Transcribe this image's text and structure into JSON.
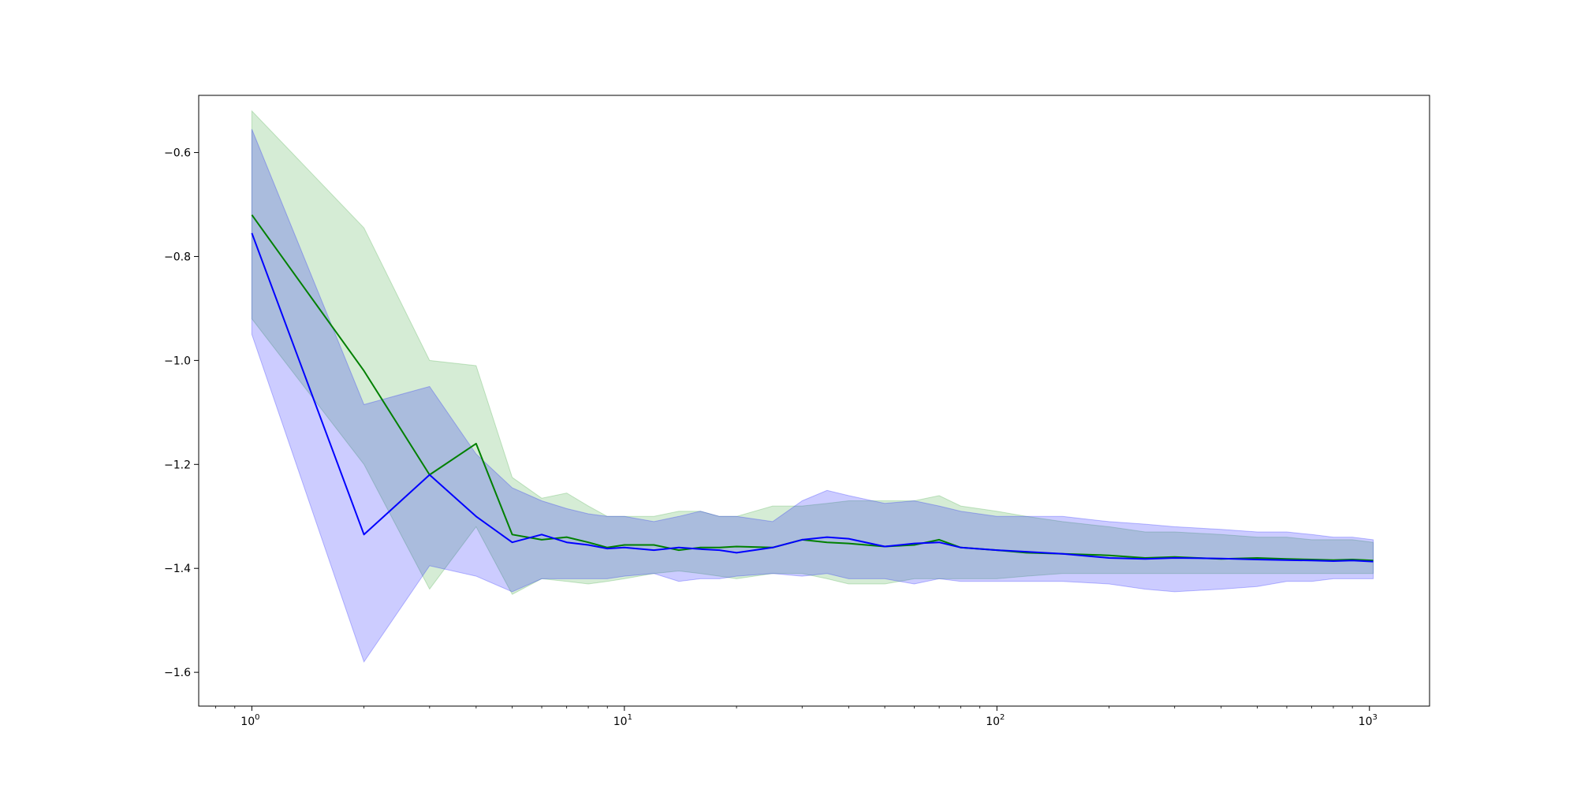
{
  "chart_data": {
    "type": "line",
    "title": "",
    "xlabel": "",
    "ylabel": "",
    "xscale": "log",
    "xlim": [
      0.72,
      1450
    ],
    "ylim": [
      -1.665,
      -0.49
    ],
    "grid": false,
    "legend": "none",
    "x_ticks": [
      {
        "value": 1,
        "base": "10",
        "exp": "0"
      },
      {
        "value": 10,
        "base": "10",
        "exp": "1"
      },
      {
        "value": 100,
        "base": "10",
        "exp": "2"
      },
      {
        "value": 1000,
        "base": "10",
        "exp": "3"
      }
    ],
    "y_ticks": [
      {
        "value": -0.6,
        "label": "−0.6"
      },
      {
        "value": -0.8,
        "label": "−0.8"
      },
      {
        "value": -1.0,
        "label": "−1.0"
      },
      {
        "value": -1.2,
        "label": "−1.2"
      },
      {
        "value": -1.4,
        "label": "−1.4"
      },
      {
        "value": -1.6,
        "label": "−1.6"
      }
    ],
    "series": [
      {
        "color": "#008000",
        "band_color": "#2ca02c",
        "x": [
          1,
          2,
          3,
          4,
          5,
          6,
          7,
          8,
          9,
          10,
          12,
          14,
          16,
          18,
          20,
          25,
          30,
          35,
          40,
          50,
          60,
          70,
          80,
          100,
          120,
          150,
          200,
          250,
          300,
          400,
          500,
          600,
          700,
          800,
          900,
          1024
        ],
        "mean": [
          -0.72,
          -1.02,
          -1.22,
          -1.16,
          -1.335,
          -1.345,
          -1.34,
          -1.35,
          -1.36,
          -1.355,
          -1.355,
          -1.365,
          -1.36,
          -1.36,
          -1.358,
          -1.36,
          -1.345,
          -1.35,
          -1.352,
          -1.358,
          -1.355,
          -1.345,
          -1.36,
          -1.365,
          -1.37,
          -1.372,
          -1.375,
          -1.38,
          -1.378,
          -1.382,
          -1.38,
          -1.382,
          -1.383,
          -1.384,
          -1.383,
          -1.385
        ],
        "lower": [
          -0.92,
          -1.2,
          -1.44,
          -1.32,
          -1.45,
          -1.42,
          -1.425,
          -1.43,
          -1.425,
          -1.42,
          -1.41,
          -1.405,
          -1.41,
          -1.415,
          -1.42,
          -1.41,
          -1.41,
          -1.42,
          -1.43,
          -1.43,
          -1.42,
          -1.42,
          -1.42,
          -1.42,
          -1.415,
          -1.41,
          -1.41,
          -1.41,
          -1.41,
          -1.41,
          -1.41,
          -1.41,
          -1.41,
          -1.41,
          -1.41,
          -1.41
        ],
        "upper": [
          -0.52,
          -0.745,
          -1.0,
          -1.01,
          -1.225,
          -1.265,
          -1.255,
          -1.28,
          -1.3,
          -1.3,
          -1.3,
          -1.29,
          -1.29,
          -1.3,
          -1.3,
          -1.28,
          -1.28,
          -1.275,
          -1.27,
          -1.27,
          -1.27,
          -1.26,
          -1.28,
          -1.29,
          -1.3,
          -1.31,
          -1.32,
          -1.33,
          -1.33,
          -1.335,
          -1.34,
          -1.34,
          -1.345,
          -1.345,
          -1.345,
          -1.35
        ]
      },
      {
        "color": "#0000ff",
        "band_color": "#0000ff",
        "x": [
          1,
          2,
          3,
          4,
          5,
          6,
          7,
          8,
          9,
          10,
          12,
          14,
          16,
          18,
          20,
          25,
          30,
          35,
          40,
          50,
          60,
          70,
          80,
          100,
          120,
          150,
          200,
          250,
          300,
          400,
          500,
          600,
          700,
          800,
          900,
          1024
        ],
        "mean": [
          -0.755,
          -1.335,
          -1.22,
          -1.3,
          -1.35,
          -1.335,
          -1.35,
          -1.355,
          -1.362,
          -1.36,
          -1.365,
          -1.36,
          -1.363,
          -1.365,
          -1.37,
          -1.36,
          -1.345,
          -1.34,
          -1.343,
          -1.358,
          -1.352,
          -1.35,
          -1.36,
          -1.365,
          -1.368,
          -1.372,
          -1.38,
          -1.382,
          -1.38,
          -1.381,
          -1.383,
          -1.384,
          -1.385,
          -1.386,
          -1.385,
          -1.387
        ],
        "lower": [
          -0.95,
          -1.58,
          -1.395,
          -1.415,
          -1.445,
          -1.42,
          -1.42,
          -1.42,
          -1.42,
          -1.415,
          -1.41,
          -1.425,
          -1.42,
          -1.42,
          -1.415,
          -1.41,
          -1.415,
          -1.41,
          -1.42,
          -1.42,
          -1.43,
          -1.42,
          -1.425,
          -1.425,
          -1.425,
          -1.425,
          -1.43,
          -1.44,
          -1.445,
          -1.44,
          -1.435,
          -1.425,
          -1.425,
          -1.42,
          -1.42,
          -1.42
        ],
        "upper": [
          -0.555,
          -1.085,
          -1.05,
          -1.18,
          -1.245,
          -1.27,
          -1.285,
          -1.295,
          -1.3,
          -1.3,
          -1.31,
          -1.3,
          -1.29,
          -1.3,
          -1.3,
          -1.31,
          -1.27,
          -1.25,
          -1.26,
          -1.275,
          -1.27,
          -1.28,
          -1.29,
          -1.3,
          -1.3,
          -1.3,
          -1.31,
          -1.315,
          -1.32,
          -1.325,
          -1.33,
          -1.33,
          -1.335,
          -1.34,
          -1.34,
          -1.345
        ]
      }
    ]
  }
}
